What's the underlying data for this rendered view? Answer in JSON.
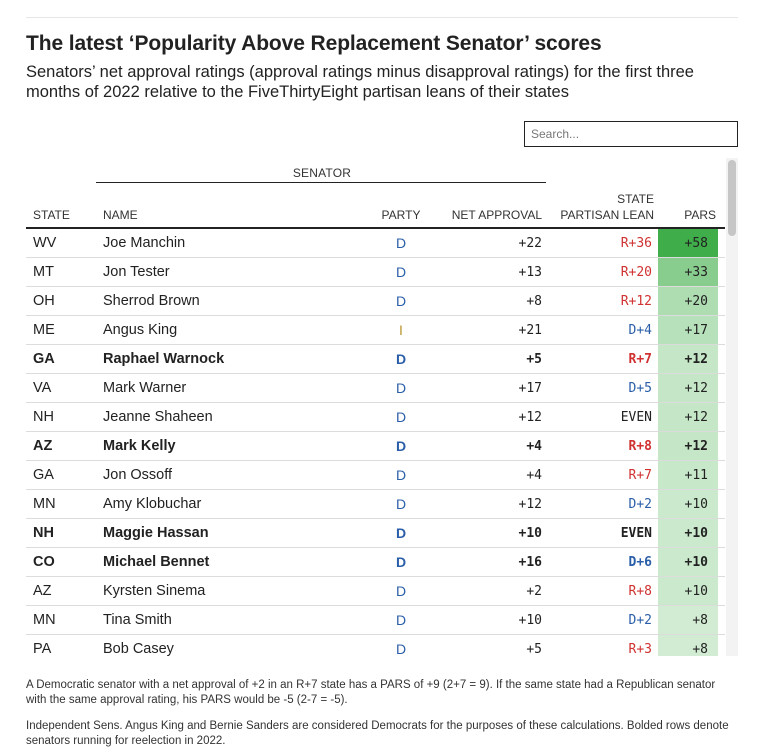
{
  "title": "The latest ‘Popularity Above Replacement Senator’ scores",
  "subtitle": "Senators’ net approval ratings (approval ratings minus disapproval ratings) for the first three months of 2022 relative to the FiveThirtyEight partisan leans of their states",
  "search": {
    "placeholder": "Search..."
  },
  "headers": {
    "group": "SENATOR",
    "state": "STATE",
    "name": "NAME",
    "party": "PARTY",
    "net": "NET APPROVAL",
    "lean_top": "STATE",
    "lean_bottom": "PARTISAN LEAN",
    "pars": "PARS"
  },
  "colors": {
    "dem": "#2a5ea8",
    "rep": "#d03232",
    "ind": "#b8962e",
    "pars_scale_low": "#e8f6e8",
    "pars_scale_high": "#3fae4a"
  },
  "rows": [
    {
      "state": "WV",
      "name": "Joe Manchin",
      "party": "D",
      "net": "+22",
      "lean": "R+36",
      "pars": "+58",
      "pars_value": 58,
      "bold": false
    },
    {
      "state": "MT",
      "name": "Jon Tester",
      "party": "D",
      "net": "+13",
      "lean": "R+20",
      "pars": "+33",
      "pars_value": 33,
      "bold": false
    },
    {
      "state": "OH",
      "name": "Sherrod Brown",
      "party": "D",
      "net": "+8",
      "lean": "R+12",
      "pars": "+20",
      "pars_value": 20,
      "bold": false
    },
    {
      "state": "ME",
      "name": "Angus King",
      "party": "I",
      "net": "+21",
      "lean": "D+4",
      "pars": "+17",
      "pars_value": 17,
      "bold": false
    },
    {
      "state": "GA",
      "name": "Raphael Warnock",
      "party": "D",
      "net": "+5",
      "lean": "R+7",
      "pars": "+12",
      "pars_value": 12,
      "bold": true
    },
    {
      "state": "VA",
      "name": "Mark Warner",
      "party": "D",
      "net": "+17",
      "lean": "D+5",
      "pars": "+12",
      "pars_value": 12,
      "bold": false
    },
    {
      "state": "NH",
      "name": "Jeanne Shaheen",
      "party": "D",
      "net": "+12",
      "lean": "EVEN",
      "pars": "+12",
      "pars_value": 12,
      "bold": false
    },
    {
      "state": "AZ",
      "name": "Mark Kelly",
      "party": "D",
      "net": "+4",
      "lean": "R+8",
      "pars": "+12",
      "pars_value": 12,
      "bold": true
    },
    {
      "state": "GA",
      "name": "Jon Ossoff",
      "party": "D",
      "net": "+4",
      "lean": "R+7",
      "pars": "+11",
      "pars_value": 11,
      "bold": false
    },
    {
      "state": "MN",
      "name": "Amy Klobuchar",
      "party": "D",
      "net": "+12",
      "lean": "D+2",
      "pars": "+10",
      "pars_value": 10,
      "bold": false
    },
    {
      "state": "NH",
      "name": "Maggie Hassan",
      "party": "D",
      "net": "+10",
      "lean": "EVEN",
      "pars": "+10",
      "pars_value": 10,
      "bold": true
    },
    {
      "state": "CO",
      "name": "Michael Bennet",
      "party": "D",
      "net": "+16",
      "lean": "D+6",
      "pars": "+10",
      "pars_value": 10,
      "bold": true
    },
    {
      "state": "AZ",
      "name": "Kyrsten Sinema",
      "party": "D",
      "net": "+2",
      "lean": "R+8",
      "pars": "+10",
      "pars_value": 10,
      "bold": false
    },
    {
      "state": "MN",
      "name": "Tina Smith",
      "party": "D",
      "net": "+10",
      "lean": "D+2",
      "pars": "+8",
      "pars_value": 8,
      "bold": false
    },
    {
      "state": "PA",
      "name": "Bob Casey",
      "party": "D",
      "net": "+5",
      "lean": "R+3",
      "pars": "+8",
      "pars_value": 8,
      "bold": false
    }
  ],
  "footnotes": [
    "A Democratic senator with a net approval of +2 in an R+7 state has a PARS of +9 (2+7 = 9). If the same state had a Republican senator with the same approval rating, his PARS would be -5 (2-7 = -5).",
    "Independent Sens. Angus King and Bernie Sanders are considered Democrats for the purposes of these calculations. Bolded rows denote senators running for reelection in 2022."
  ]
}
